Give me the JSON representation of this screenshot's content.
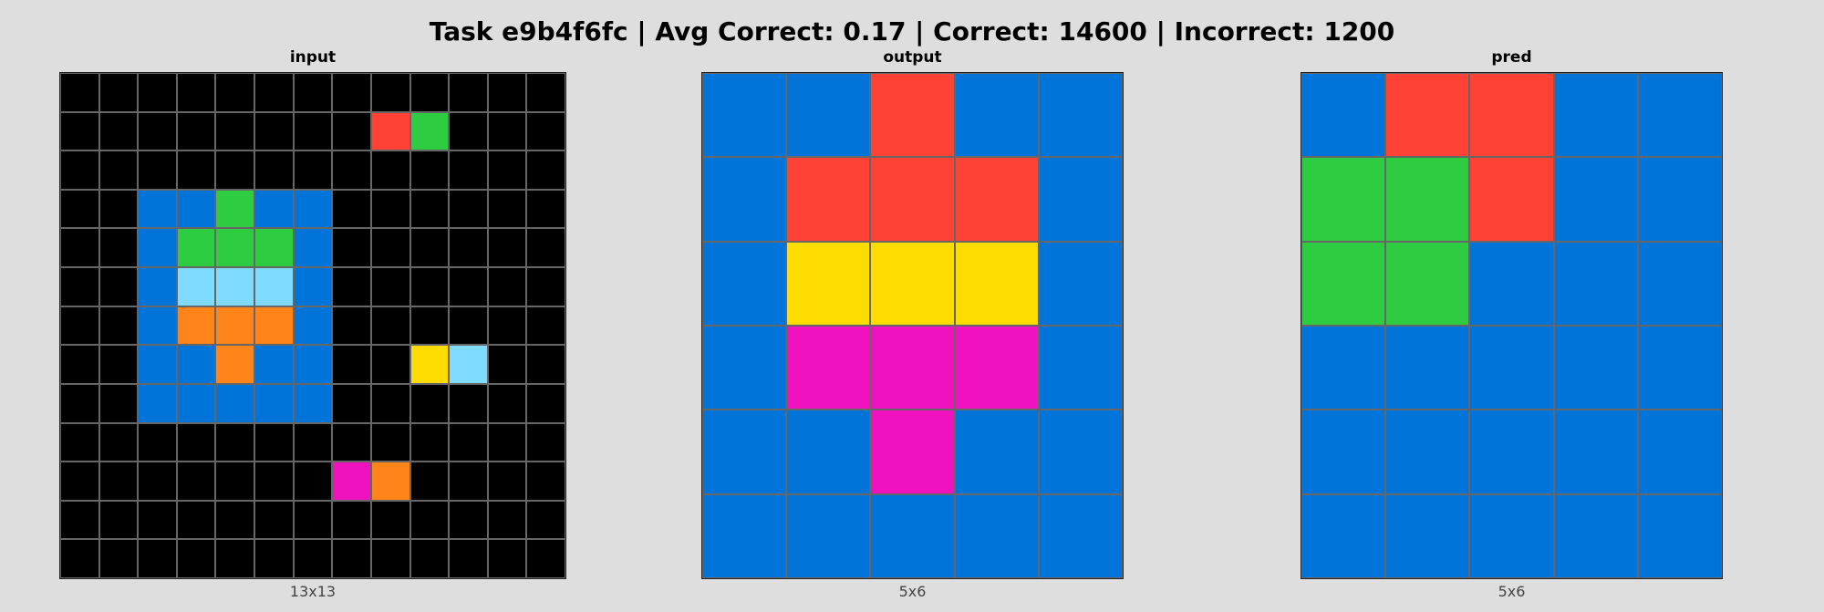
{
  "title": "Task e9b4f6fc | Avg Correct: 0.17 | Correct: 14600 | Incorrect: 1200",
  "palette": {
    "0": "#000000",
    "1": "#0074D9",
    "2": "#FF4136",
    "3": "#2ECC40",
    "4": "#FFDC00",
    "6": "#F012BE",
    "7": "#FF851B",
    "8": "#7FDBFF"
  },
  "panels": [
    {
      "label": "input",
      "caption": "13x13",
      "cells": [
        [
          0,
          0,
          0,
          0,
          0,
          0,
          0,
          0,
          0,
          0,
          0,
          0,
          0
        ],
        [
          0,
          0,
          0,
          0,
          0,
          0,
          0,
          0,
          2,
          3,
          0,
          0,
          0
        ],
        [
          0,
          0,
          0,
          0,
          0,
          0,
          0,
          0,
          0,
          0,
          0,
          0,
          0
        ],
        [
          0,
          0,
          1,
          1,
          3,
          1,
          1,
          0,
          0,
          0,
          0,
          0,
          0
        ],
        [
          0,
          0,
          1,
          3,
          3,
          3,
          1,
          0,
          0,
          0,
          0,
          0,
          0
        ],
        [
          0,
          0,
          1,
          8,
          8,
          8,
          1,
          0,
          0,
          0,
          0,
          0,
          0
        ],
        [
          0,
          0,
          1,
          7,
          7,
          7,
          1,
          0,
          0,
          0,
          0,
          0,
          0
        ],
        [
          0,
          0,
          1,
          1,
          7,
          1,
          1,
          0,
          0,
          4,
          8,
          0,
          0
        ],
        [
          0,
          0,
          1,
          1,
          1,
          1,
          1,
          0,
          0,
          0,
          0,
          0,
          0
        ],
        [
          0,
          0,
          0,
          0,
          0,
          0,
          0,
          0,
          0,
          0,
          0,
          0,
          0
        ],
        [
          0,
          0,
          0,
          0,
          0,
          0,
          0,
          6,
          7,
          0,
          0,
          0,
          0
        ],
        [
          0,
          0,
          0,
          0,
          0,
          0,
          0,
          0,
          0,
          0,
          0,
          0,
          0
        ],
        [
          0,
          0,
          0,
          0,
          0,
          0,
          0,
          0,
          0,
          0,
          0,
          0,
          0
        ]
      ]
    },
    {
      "label": "output",
      "caption": "5x6",
      "cells": [
        [
          1,
          1,
          2,
          1,
          1
        ],
        [
          1,
          2,
          2,
          2,
          1
        ],
        [
          1,
          4,
          4,
          4,
          1
        ],
        [
          1,
          6,
          6,
          6,
          1
        ],
        [
          1,
          1,
          6,
          1,
          1
        ],
        [
          1,
          1,
          1,
          1,
          1
        ]
      ]
    },
    {
      "label": "pred",
      "caption": "5x6",
      "cells": [
        [
          1,
          2,
          2,
          1,
          1
        ],
        [
          3,
          3,
          2,
          1,
          1
        ],
        [
          3,
          3,
          1,
          1,
          1
        ],
        [
          1,
          1,
          1,
          1,
          1
        ],
        [
          1,
          1,
          1,
          1,
          1
        ],
        [
          1,
          1,
          1,
          1,
          1
        ]
      ]
    }
  ]
}
